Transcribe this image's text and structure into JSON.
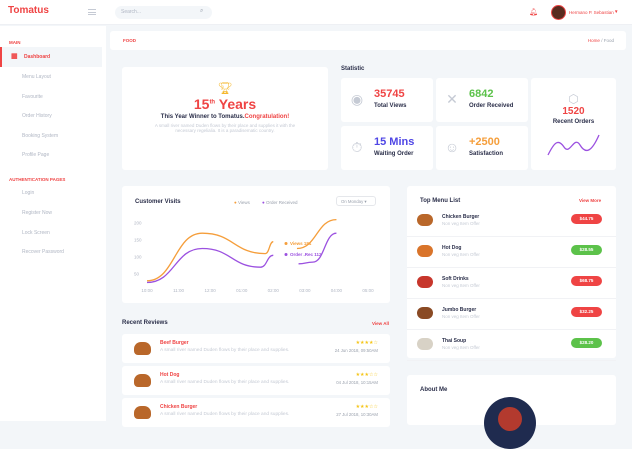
{
  "header": {
    "logo": "Tomatus",
    "search_placeholder": "Search...",
    "user_name": "Hermano P. Sebastian"
  },
  "sidebar": {
    "section_main": "MAIN",
    "items": [
      "Dashboard",
      "Menu Layout",
      "Favourite",
      "Order History",
      "Booking System",
      "Profile Page"
    ],
    "section_auth": "AUTHENTICATION PAGES",
    "auth_items": [
      "Login",
      "Register Now",
      "Lock Screen",
      "Recover Password"
    ]
  },
  "breadcrumb": {
    "title": "FOOD",
    "home": "Home",
    "sep": "/",
    "current": "Food"
  },
  "award": {
    "years_num": "15",
    "years_sup": "th",
    "years_word": "Years",
    "winner": "This Year Winner to Tomatus.",
    "congrats": "Congratulation!",
    "desc": "A small river named Duden flows by their place and supplies it with the necessary regelialia. It is a paradisematic country."
  },
  "statistic": {
    "title": "Statistic",
    "cards": [
      {
        "value": "35745",
        "label": "Total Views",
        "color": "#ef4444",
        "icon": "eye-icon"
      },
      {
        "value": "6842",
        "label": "Order Received",
        "color": "#5cc24a",
        "icon": "utensils-icon"
      },
      {
        "value": "15 Mins",
        "label": "Waiting Order",
        "color": "#4f46e5",
        "icon": "stopwatch-icon"
      },
      {
        "value": "+2500",
        "label": "Satisfaction",
        "color": "#f59e3b",
        "icon": "user-icon"
      }
    ],
    "recent": {
      "value": "1520",
      "label": "Recent Orders",
      "icon": "box-icon"
    }
  },
  "visits": {
    "title": "Customer Visits",
    "dropdown": "On Monday"
  },
  "chart_data": {
    "type": "line",
    "x": [
      "10:00",
      "11:00",
      "12:00",
      "01:00",
      "02:00",
      "03:00",
      "04:00",
      "05:00"
    ],
    "yticks": [
      50,
      100,
      150,
      200
    ],
    "ylim": [
      0,
      220
    ],
    "series": [
      {
        "name": "Views",
        "color": "#f59e3b",
        "points": [
          [
            0,
            30
          ],
          [
            1.75,
            170
          ],
          [
            3.75,
            110
          ],
          [
            4,
            145
          ],
          [
            null,
            null
          ],
          [
            4.75,
            125
          ],
          [
            6,
            210
          ]
        ]
      },
      {
        "name": "Order Received",
        "color": "#9b51e0",
        "points": [
          [
            0,
            25
          ],
          [
            1.75,
            125
          ],
          [
            3.6,
            70
          ],
          [
            4,
            105
          ],
          [
            null,
            null
          ],
          [
            4.8,
            80
          ],
          [
            5.25,
            85
          ],
          [
            6,
            170
          ]
        ]
      }
    ],
    "annotations": [
      "Views 181",
      "Order .Rec 112"
    ]
  },
  "top_menu": {
    "title": "Top Menu List",
    "view_more": "View More",
    "items": [
      {
        "name": "Chicken Burger",
        "sub": "Non veg Item Offer",
        "price": "$44.75",
        "color": "#ef4444"
      },
      {
        "name": "Hot Dog",
        "sub": "Non veg Item Offer",
        "price": "$28.55",
        "color": "#5cc24a"
      },
      {
        "name": "Soft Drinks",
        "sub": "Non veg Item Offer",
        "price": "$68.75",
        "color": "#ef4444"
      },
      {
        "name": "Jumbo Burger",
        "sub": "Non veg Item Offer",
        "price": "$32.25",
        "color": "#ef4444"
      },
      {
        "name": "Thai Soup",
        "sub": "Non veg Item Offer",
        "price": "$28.20",
        "color": "#5cc24a"
      }
    ]
  },
  "reviews": {
    "title": "Recent Reviews",
    "view_all": "View All",
    "items": [
      {
        "name": "Beef Burger",
        "text": "A small river named Duden flows by their place and supplies.",
        "stars": "★★★★☆",
        "rating": 4,
        "date": "24 Jun 2018, 09:50AM"
      },
      {
        "name": "Hot Dog",
        "text": "A small river named Duden flows by their place and supplies.",
        "stars": "★★★☆☆",
        "rating": 3,
        "date": "04 Jul 2018, 10:15AM"
      },
      {
        "name": "Chicken Burger",
        "text": "A small river named Duden flows by their place and supplies.",
        "stars": "★★★☆☆",
        "rating": 3,
        "date": "27 Jul 2018, 10:30AM"
      }
    ]
  },
  "about": {
    "title": "About Me"
  }
}
